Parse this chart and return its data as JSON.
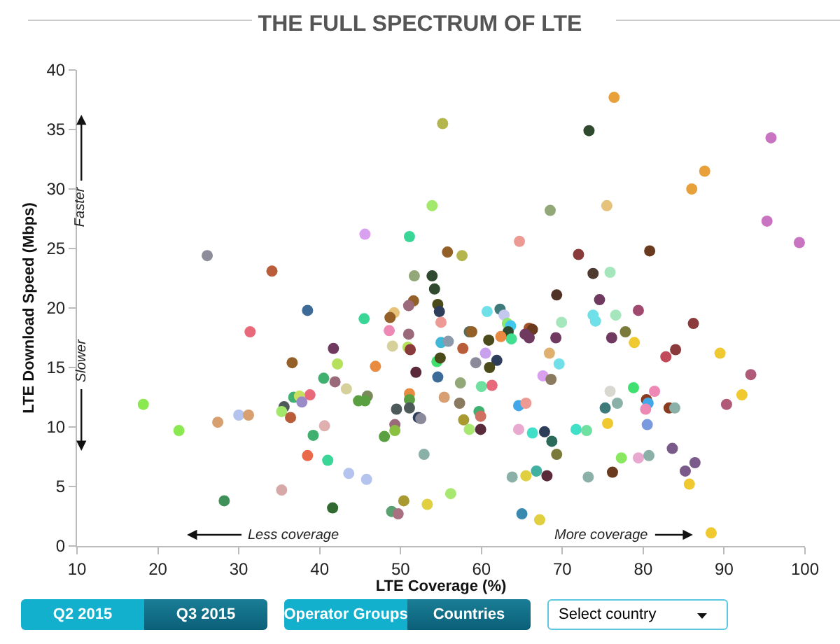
{
  "chart_data": {
    "type": "scatter",
    "title": "THE FULL SPECTRUM OF LTE",
    "xlabel": "LTE Coverage (%)",
    "ylabel": "LTE Download Speed (Mbps)",
    "xlim": [
      10,
      100
    ],
    "xticks": [
      10,
      20,
      30,
      40,
      50,
      60,
      70,
      80,
      90,
      100
    ],
    "ylim": [
      0,
      40
    ],
    "yticks": [
      0,
      5,
      10,
      15,
      20,
      25,
      30,
      35,
      40
    ],
    "marker": "circle",
    "annotations": [
      "Faster",
      "Slower",
      "Less coverage",
      "More coverage",
      "Q2 2015",
      "Q3 2015",
      "Operator Groups",
      "Countries",
      "Select country"
    ],
    "x": [
      76.4,
      73.3,
      55.2,
      95.8,
      87.6,
      86.0,
      53.9,
      68.5,
      75.5,
      95.3,
      99.3,
      64.7,
      55.8,
      57.6,
      72.0,
      80.8,
      73.8,
      75.9,
      53.9,
      54.2,
      69.3,
      74.6,
      45.6,
      51.1,
      26.1,
      34.1,
      51.7,
      51.6,
      51.0,
      38.5,
      54.6,
      54.8,
      45.5,
      49.2,
      48.7,
      55.0,
      31.4,
      48.6,
      51.0,
      41.7,
      49.0,
      50.9,
      51.2,
      55.0,
      36.6,
      42.2,
      46.9,
      51.9,
      54.5,
      54.9,
      54.6,
      40.5,
      41.9,
      43.3,
      45.9,
      44.8,
      45.6,
      51.1,
      51.1,
      38.8,
      36.8,
      37.5,
      37.8,
      35.6,
      35.3,
      36.4,
      18.2,
      30.0,
      31.2,
      27.4,
      22.6,
      49.5,
      51.1,
      52.2,
      52.5,
      49.3,
      49.3,
      48.0,
      40.6,
      39.2,
      38.5,
      41.0,
      52.9,
      43.6,
      45.8,
      35.3,
      28.2,
      41.6,
      50.4,
      53.3,
      48.9,
      49.7,
      60.7,
      62.3,
      62.8,
      69.9,
      73.8,
      74.1,
      76.6,
      79.4,
      86.2,
      58.5,
      58.8,
      63.2,
      63.6,
      63.3,
      63.7,
      62.4,
      65.9,
      66.3,
      65.4,
      65.9,
      60.9,
      55.9,
      69.2,
      76.1,
      77.8,
      78.9,
      57.7,
      60.5,
      59.3,
      61.9,
      61.0,
      68.4,
      69.6,
      82.8,
      84.0,
      89.5,
      93.3,
      57.4,
      67.6,
      68.6,
      60.0,
      61.3,
      78.8,
      75.9,
      81.4,
      55.4,
      57.3,
      64.6,
      65.5,
      75.3,
      76.8,
      80.4,
      80.6,
      80.3,
      83.2,
      83.9,
      90.3,
      92.2,
      59.7,
      59.9,
      57.8,
      58.5,
      59.9,
      64.6,
      66.3,
      67.8,
      68.7,
      71.7,
      73.0,
      75.6,
      80.5,
      69.3,
      77.3,
      79.4,
      80.7,
      83.6,
      85.2,
      86.4,
      85.7,
      63.8,
      65.5,
      66.8,
      68.1,
      73.2,
      76.2,
      56.2,
      65.0,
      67.2,
      88.4
    ],
    "values": [
      37.7,
      34.9,
      35.5,
      34.3,
      31.5,
      30.0,
      28.6,
      28.2,
      28.6,
      27.3,
      25.5,
      25.6,
      24.7,
      24.4,
      24.5,
      24.8,
      22.9,
      23.0,
      22.7,
      21.6,
      21.1,
      20.7,
      26.2,
      26.0,
      24.4,
      23.1,
      22.7,
      20.6,
      20.2,
      19.8,
      20.3,
      19.7,
      19.1,
      19.6,
      19.2,
      18.8,
      18.0,
      18.1,
      17.8,
      16.6,
      16.8,
      16.7,
      16.5,
      17.1,
      15.4,
      15.3,
      15.1,
      14.6,
      15.5,
      15.8,
      14.2,
      14.1,
      13.8,
      13.2,
      12.6,
      12.2,
      12.2,
      12.8,
      12.3,
      12.7,
      12.5,
      12.6,
      12.1,
      11.7,
      11.3,
      10.8,
      11.9,
      11.0,
      11.0,
      10.4,
      9.7,
      11.5,
      11.6,
      10.8,
      10.7,
      10.2,
      9.7,
      9.2,
      10.1,
      9.3,
      7.6,
      7.2,
      7.7,
      6.1,
      5.6,
      4.7,
      3.8,
      3.2,
      3.8,
      3.5,
      2.9,
      2.7,
      19.7,
      19.9,
      19.4,
      18.8,
      19.4,
      18.9,
      19.4,
      19.8,
      18.7,
      18.0,
      18.0,
      18.7,
      18.5,
      18.0,
      17.4,
      17.6,
      18.3,
      18.2,
      17.8,
      17.5,
      17.3,
      17.2,
      17.5,
      17.5,
      18.0,
      17.1,
      16.6,
      16.2,
      15.4,
      15.6,
      15.0,
      16.2,
      15.3,
      15.9,
      16.5,
      16.2,
      14.4,
      13.7,
      14.3,
      14.0,
      13.4,
      13.5,
      13.3,
      13.0,
      13.0,
      12.5,
      12.0,
      11.8,
      12.0,
      11.6,
      12.0,
      12.3,
      12.0,
      11.5,
      11.6,
      11.6,
      11.9,
      12.7,
      11.3,
      10.9,
      10.6,
      9.8,
      9.8,
      9.8,
      9.5,
      9.6,
      8.8,
      9.8,
      9.7,
      10.3,
      10.2,
      7.7,
      7.4,
      7.4,
      7.6,
      8.2,
      6.3,
      7.0,
      5.2,
      5.8,
      5.9,
      6.3,
      5.9,
      5.8,
      6.2,
      4.4,
      2.7,
      2.2,
      1.1
    ],
    "colors": [
      "#e8a13a",
      "#2f4a2f",
      "#b5b54e",
      "#c874c0",
      "#e8a13a",
      "#e8a13a",
      "#a2e86a",
      "#93a878",
      "#e6c27a",
      "#c874c0",
      "#c874c0",
      "#ee9a94",
      "#936028",
      "#b5b54e",
      "#8a3a3a",
      "#6a3a1e",
      "#4e3a2e",
      "#a6e6bc",
      "#2f4a2f",
      "#2f4a2f",
      "#4e3226",
      "#703a60",
      "#d8a0ee",
      "#3ad698",
      "#8c8c9a",
      "#b85c3a",
      "#93a878",
      "#936028",
      "#9a6a7a",
      "#3e6a98",
      "#4a4a1a",
      "#2e3e5a",
      "#3ad698",
      "#e6c27a",
      "#936028",
      "#ee9a94",
      "#e86a7a",
      "#ee88b4",
      "#9a6a7a",
      "#703a60",
      "#d6d09a",
      "#b4e05a",
      "#8a3a3a",
      "#40b8d8",
      "#936028",
      "#b4e05a",
      "#e88a40",
      "#5a2a3a",
      "#40e070",
      "#4a4a1a",
      "#3e6a98",
      "#40b070",
      "#9a6a7a",
      "#d6d09a",
      "#7a8a5a",
      "#5aa040",
      "#5aa040",
      "#e88a40",
      "#5aa040",
      "#e86a7a",
      "#40b070",
      "#c8e060",
      "#9a8ac8",
      "#4e5a5a",
      "#a2e86a",
      "#b85c3a",
      "#8ae850",
      "#b4c4ee",
      "#d8a070",
      "#d8a070",
      "#8ae850",
      "#4e5a5a",
      "#4e5a5a",
      "#2e3e5a",
      "#8a8a9a",
      "#9a6a7a",
      "#8ac040",
      "#5aa040",
      "#e0b0b0",
      "#40b070",
      "#e86a4a",
      "#3ad698",
      "#8ab0a8",
      "#b4c4ee",
      "#b4c4ee",
      "#d8a8a8",
      "#40905a",
      "#306a30",
      "#a89a30",
      "#e0d040",
      "#5aa070",
      "#a87080",
      "#70e0e8",
      "#3e7a7a",
      "#c4c8ee",
      "#a6e6bc",
      "#70e0e8",
      "#70e0e8",
      "#a6e6bc",
      "#a04a70",
      "#8a3a3a",
      "#5a6a5a",
      "#936028",
      "#8ae870",
      "#40c8ee",
      "#2f4a2f",
      "#40e090",
      "#e88a40",
      "#a0502a",
      "#6a3a1e",
      "#703a60",
      "#703a60",
      "#4a4a1a",
      "#8a9aaa",
      "#703a60",
      "#703a60",
      "#7a7a3a",
      "#f0c830",
      "#b85c3a",
      "#c8a0ee",
      "#8a8a9a",
      "#2e3e5a",
      "#4a4a1a",
      "#e0b070",
      "#70e0e8",
      "#c04a5a",
      "#8a3a3a",
      "#f0c830",
      "#b05a7a",
      "#93a878",
      "#d8a0ee",
      "#8a7a60",
      "#70e0a0",
      "#e86a7a",
      "#40e070",
      "#d8d8d0",
      "#ee88b4",
      "#d8a070",
      "#8a7a60",
      "#40a8e8",
      "#ee9a94",
      "#3e7a7a",
      "#8ab0a8",
      "#8a3a1e",
      "#40a8e8",
      "#ee88b4",
      "#8a3a1e",
      "#8ab0a8",
      "#b05a7a",
      "#f0c830",
      "#40b070",
      "#d07060",
      "#a89a30",
      "#a8e870",
      "#5a2a3a",
      "#e8a8d0",
      "#40e0c8",
      "#2e3e5a",
      "#2a6a5a",
      "#40e0c8",
      "#70e0a0",
      "#f0c830",
      "#7a9ae0",
      "#7a7a3a",
      "#8ae860",
      "#e8a8d0",
      "#8ab0a8",
      "#7a5a8a",
      "#7a5a8a",
      "#7a5a8a",
      "#f0c830",
      "#8ab0a8",
      "#e0d040",
      "#40b0a0",
      "#5a2a3a",
      "#8ab0a8",
      "#6a3a1e",
      "#a8e870",
      "#3a8ab0",
      "#e0d040",
      "#f0c830"
    ]
  }
}
